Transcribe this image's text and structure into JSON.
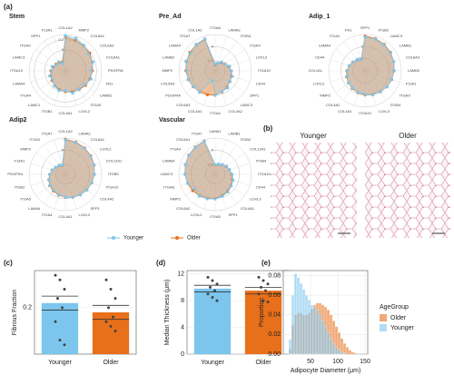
{
  "chart_data": [
    {
      "type": "radar",
      "panel": "(a)",
      "title": "Stem",
      "rlim": [
        -0.4,
        0.3
      ],
      "rticks": [
        0,
        0.2
      ],
      "categories": [
        "COL1A2",
        "MMP2",
        "COL5A1",
        "COL6A3",
        "COL6A1",
        "PDGFRA",
        "FN1",
        "LAMB2",
        "ITGA5",
        "LOXL2",
        "COL4A1",
        "ITGB1",
        "LAMC1",
        "ITGA4",
        "LAMA4",
        "ITGA10",
        "LAMC3",
        "ITGAX",
        "SPP1",
        "F13A1"
      ],
      "series": [
        {
          "name": "Younger",
          "color": "#7cc6ee",
          "values": [
            0.28,
            0.26,
            0.21,
            0.15,
            0.16,
            0.1,
            0.12,
            0.06,
            0.04,
            0.05,
            -0.02,
            0,
            -0.04,
            -0.1,
            -0.08,
            -0.14,
            -0.13,
            -0.2,
            -0.18,
            -0.25
          ]
        },
        {
          "name": "Older",
          "color": "#e8701a",
          "values": [
            0.25,
            0.22,
            0.2,
            0.18,
            0.15,
            0.12,
            0.1,
            0.08,
            0.05,
            0.03,
            0,
            -0.02,
            -0.05,
            -0.08,
            -0.1,
            -0.12,
            -0.15,
            -0.18,
            -0.2,
            -0.22
          ]
        }
      ]
    },
    {
      "type": "radar",
      "title": "Pre_Ad",
      "rlim": [
        -1.2,
        0.6
      ],
      "rticks": [
        -0.7,
        0
      ],
      "categories": [
        "ITGA8",
        "LAMA2",
        "ITGB4",
        "ITGAX",
        "LOXL3",
        "ITGA10",
        "CD44",
        "SPP1",
        "LAMC3",
        "COL4A2",
        "ITGA4",
        "COL4A1",
        "COL6A3",
        "PDGFRA",
        "COL5A3",
        "MMP2",
        "LAMB2",
        "LAMA4",
        "ITGA7",
        "COL1A2"
      ],
      "series": [
        {
          "name": "Younger",
          "color": "#7cc6ee",
          "values": [
            -0.85,
            -0.82,
            -0.65,
            -0.62,
            -0.45,
            -0.42,
            -0.3,
            -0.33,
            -0.15,
            -0.12,
            0.02,
            -0.7,
            0.12,
            0.13,
            0.22,
            0.2,
            0.33,
            0.3,
            0.42,
            0.47
          ]
        },
        {
          "name": "Older",
          "color": "#e8701a",
          "values": [
            -0.9,
            -0.8,
            -0.7,
            -0.6,
            -0.5,
            -0.4,
            -0.35,
            -0.3,
            -0.2,
            -0.1,
            0,
            0.05,
            0.1,
            0.15,
            0.2,
            0.25,
            0.3,
            0.35,
            0.4,
            0.45
          ]
        }
      ]
    },
    {
      "type": "radar",
      "title": "Adip_1",
      "rlim": [
        -0.8,
        0.4
      ],
      "rticks": [
        -0.4,
        0
      ],
      "categories": [
        "SPP1",
        "ITGB2",
        "LAMC3",
        "LAMB1",
        "COL6A3",
        "LAMB2",
        "F13A1",
        "ITGAX",
        "ITGB4",
        "LOXL3",
        "ITGA10",
        "COL4A1",
        "COL4A2",
        "MMP2",
        "LOXL2",
        "COL1A1",
        "CD44",
        "LAMA4",
        "ITGA1",
        "FN1"
      ],
      "series": [
        {
          "name": "Younger",
          "color": "#7cc6ee",
          "values": [
            0.32,
            0.3,
            0.26,
            0.22,
            0.2,
            0.17,
            0.12,
            0.1,
            0.05,
            0.04,
            -0.02,
            -0.05,
            -0.1,
            -0.12,
            -0.18,
            -0.22,
            -0.25,
            -0.3,
            -0.34,
            -0.4
          ]
        },
        {
          "name": "Older",
          "color": "#e8701a",
          "values": [
            0.35,
            0.32,
            0.28,
            0.24,
            0.2,
            0.16,
            0.13,
            0.1,
            0.06,
            0.03,
            0,
            -0.04,
            -0.08,
            -0.12,
            -0.16,
            -0.2,
            -0.25,
            -0.3,
            -0.35,
            -0.4
          ]
        }
      ]
    },
    {
      "type": "radar",
      "title": "Adip2",
      "rlim": [
        -1.0,
        0.5
      ],
      "rticks": [
        -0.6,
        0
      ],
      "categories": [
        "COL1A2",
        "LAMA2",
        "COL6A1",
        "LOXL2",
        "COL12A1",
        "ITGB5",
        "ITGA10",
        "COL4A2",
        "SPP1",
        "LOXL3",
        "COL4A1",
        "ITGA4",
        "LAMA4",
        "ITGA5",
        "ITGB2",
        "PDGFRA",
        "F13A1",
        "MMP2",
        "ITGAX",
        "ITGA7"
      ],
      "series": [
        {
          "name": "Younger",
          "color": "#7cc6ee",
          "values": [
            0.42,
            0.38,
            0.33,
            0.28,
            0.24,
            0.2,
            0.14,
            0.1,
            0.05,
            0,
            -0.06,
            -0.12,
            -0.18,
            -0.22,
            -0.3,
            -0.36,
            -0.42,
            -0.5,
            -0.55,
            -0.6
          ]
        },
        {
          "name": "Older",
          "color": "#e8701a",
          "values": [
            0.45,
            0.4,
            0.35,
            0.3,
            0.25,
            0.2,
            0.15,
            0.1,
            0.05,
            0,
            -0.05,
            -0.1,
            -0.15,
            -0.2,
            -0.28,
            -0.35,
            -0.42,
            -0.5,
            -0.56,
            -0.62
          ]
        }
      ]
    },
    {
      "type": "radar",
      "title": "Vascular",
      "rlim": [
        -1.0,
        0.5
      ],
      "rticks": [
        -0.6,
        0
      ],
      "categories": [
        "LAMA1",
        "LAMB1",
        "ITGB2",
        "COL12A1",
        "ITGB4",
        "ITGA10",
        "CD44",
        "LOXL3",
        "COL4A1",
        "SPP1",
        "ITGA5",
        "LOXL2",
        "COL6A2",
        "MMP2",
        "ITGAE",
        "LAMC3",
        "LAMB4",
        "ITGA4",
        "COL6A1",
        "ITGA7"
      ],
      "series": [
        {
          "name": "Younger",
          "color": "#7cc6ee",
          "values": [
            -0.6,
            -0.55,
            -0.5,
            -0.42,
            -0.38,
            -0.3,
            -0.22,
            -0.18,
            -0.1,
            -0.05,
            0.02,
            0.06,
            0.12,
            0.05,
            0.2,
            0.25,
            0.3,
            0.34,
            0.38,
            0.44
          ]
        },
        {
          "name": "Older",
          "color": "#e8701a",
          "values": [
            -0.62,
            -0.56,
            -0.5,
            -0.44,
            -0.38,
            -0.32,
            -0.26,
            -0.2,
            -0.14,
            -0.08,
            0,
            0.05,
            0.1,
            0.15,
            0.2,
            0.25,
            0.3,
            0.35,
            0.4,
            0.45
          ]
        }
      ]
    },
    {
      "type": "bar",
      "panel": "(c)",
      "ylabel": "Fibrous Fraction",
      "categories": [
        "Younger",
        "Older"
      ],
      "values": [
        0.21,
        0.19
      ],
      "errors": [
        0.015,
        0.015
      ],
      "colors": [
        "#7cc6ee",
        "#e8701a"
      ],
      "points": [
        [
          0.27,
          0.26,
          0.24,
          0.22,
          0.2,
          0.17,
          0.13,
          0.12
        ],
        [
          0.26,
          0.24,
          0.22,
          0.2,
          0.18,
          0.17,
          0.16,
          0.15
        ]
      ],
      "ylim": [
        0.1,
        0.28
      ],
      "yticks": [
        0.2
      ],
      "grid": true
    },
    {
      "type": "bar",
      "panel": "(d)",
      "ylabel": "Median Thickness (μm)",
      "categories": [
        "Younger",
        "Older"
      ],
      "values": [
        9.8,
        9.5
      ],
      "errors": [
        0.5,
        0.5
      ],
      "colors": [
        "#7cc6ee",
        "#e8701a"
      ],
      "points": [
        [
          11.5,
          11,
          10.5,
          10,
          9.5,
          9,
          8.5,
          8
        ],
        [
          11.5,
          11,
          10.5,
          10,
          9.5,
          9,
          8,
          7.8
        ]
      ],
      "ylim": [
        0,
        12.5
      ],
      "yticks": [
        0,
        4,
        8,
        12
      ],
      "grid": true
    },
    {
      "type": "histogram",
      "panel": "(e)",
      "xlabel": "Adipocyte Diameter (μm)",
      "ylabel": "Proportion",
      "legend_title": "AgeGroup",
      "bins": [
        10,
        15,
        20,
        25,
        30,
        35,
        40,
        45,
        50,
        55,
        60,
        65,
        70,
        75,
        80,
        85,
        90,
        95,
        100,
        105,
        110,
        115,
        120,
        125,
        130,
        135,
        140
      ],
      "series": [
        {
          "name": "Older",
          "color": "#e8701a",
          "values": [
            0.005,
            0.03,
            0.04,
            0.042,
            0.042,
            0.04,
            0.04,
            0.042,
            0.046,
            0.05,
            0.052,
            0.052,
            0.05,
            0.048,
            0.045,
            0.04,
            0.034,
            0.028,
            0.022,
            0.016,
            0.011,
            0.007,
            0.004,
            0.002,
            0.001,
            0.0005
          ]
        },
        {
          "name": "Younger",
          "color": "#7cc6ee",
          "values": [
            0.015,
            0.06,
            0.082,
            0.078,
            0.072,
            0.066,
            0.06,
            0.055,
            0.05,
            0.048,
            0.045,
            0.04,
            0.034,
            0.028,
            0.022,
            0.016,
            0.011,
            0.007,
            0.004,
            0.002,
            0.001,
            0,
            0,
            0,
            0,
            0
          ]
        }
      ],
      "xlim": [
        0,
        155
      ],
      "xticks": [
        50,
        100,
        150
      ],
      "ylim": [
        0,
        0.085
      ],
      "yticks": [
        {
          "value": 0,
          "label": "0.00"
        },
        {
          "value": 0.02,
          "label": "0.02"
        },
        {
          "value": 0.04,
          "label": "0.04"
        },
        {
          "value": 0.06,
          "label": "0.06"
        },
        {
          "value": 0.08,
          "label": "0.08"
        }
      ],
      "grid": true
    }
  ],
  "images": {
    "panel": "(b)",
    "labels": [
      "Younger",
      "Older"
    ]
  }
}
